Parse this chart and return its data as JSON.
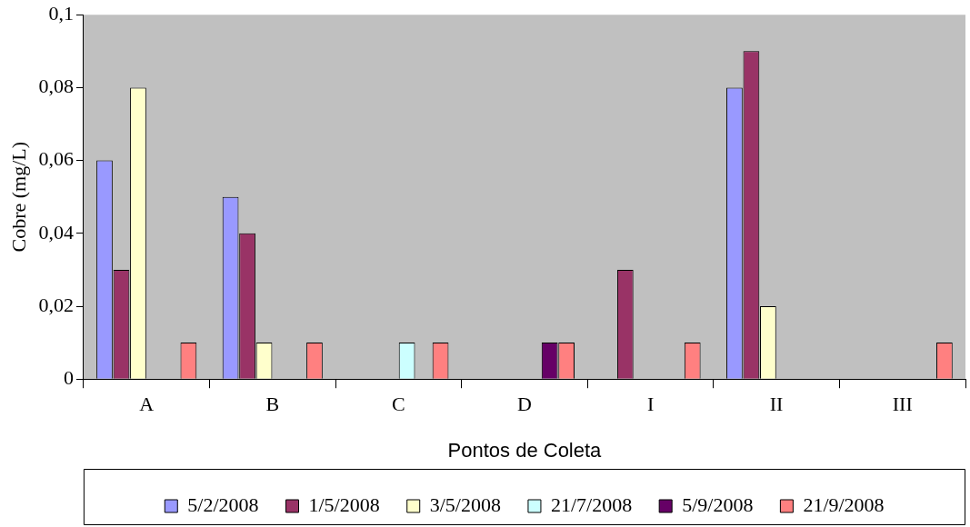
{
  "chart_data": {
    "type": "bar",
    "xlabel": "Pontos de Coleta",
    "ylabel": "Cobre (mg/L)",
    "categories": [
      "A",
      "B",
      "C",
      "D",
      "I",
      "II",
      "III"
    ],
    "series": [
      {
        "name": "5/2/2008",
        "color": "#9999ff",
        "values": [
          0.06,
          0.05,
          null,
          null,
          null,
          0.08,
          null
        ]
      },
      {
        "name": "1/5/2008",
        "color": "#993366",
        "values": [
          0.03,
          0.04,
          null,
          null,
          0.03,
          0.09,
          null
        ]
      },
      {
        "name": "3/5/2008",
        "color": "#ffffcc",
        "values": [
          0.08,
          0.01,
          null,
          null,
          null,
          0.02,
          null
        ]
      },
      {
        "name": "21/7/2008",
        "color": "#ccffff",
        "values": [
          null,
          null,
          0.01,
          null,
          null,
          null,
          null
        ]
      },
      {
        "name": "5/9/2008",
        "color": "#660066",
        "values": [
          null,
          null,
          null,
          0.01,
          null,
          null,
          null
        ]
      },
      {
        "name": "21/9/2008",
        "color": "#ff8080",
        "values": [
          0.01,
          0.01,
          0.01,
          0.01,
          0.01,
          null,
          0.01
        ]
      }
    ],
    "ylim": [
      0,
      0.1
    ],
    "yticks": [
      0,
      {
        "value": 0.02,
        "label": "0,02"
      },
      {
        "value": 0.04,
        "label": "0,04"
      },
      {
        "value": 0.06,
        "label": "0,06"
      },
      {
        "value": 0.08,
        "label": "0,08"
      },
      {
        "value": 0.1,
        "label": "0,1"
      }
    ],
    "grid": false,
    "legend": "bottom"
  }
}
